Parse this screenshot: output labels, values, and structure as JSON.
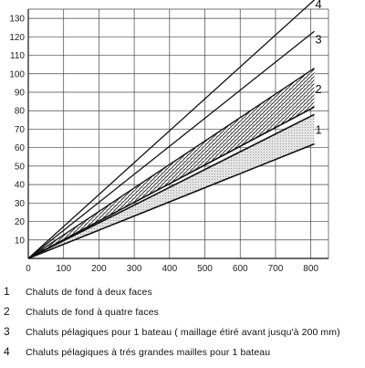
{
  "chart_data": {
    "type": "line",
    "xlabel": "",
    "ylabel": "",
    "xlim": [
      0,
      850
    ],
    "ylim": [
      0,
      135
    ],
    "x_ticks": [
      0,
      100,
      200,
      300,
      400,
      500,
      600,
      700,
      800
    ],
    "y_ticks": [
      10,
      20,
      30,
      40,
      50,
      60,
      70,
      80,
      90,
      100,
      110,
      120,
      130
    ],
    "grid": true,
    "series": [
      {
        "name": "4",
        "x": [
          0,
          810
        ],
        "y": [
          0,
          140
        ]
      },
      {
        "name": "3",
        "x": [
          0,
          810
        ],
        "y": [
          0,
          123
        ]
      },
      {
        "name": "2",
        "x": [
          0,
          810
        ],
        "y": [
          0,
          103
        ]
      },
      {
        "name": "",
        "x": [
          0,
          810
        ],
        "y": [
          0,
          82
        ]
      },
      {
        "name": "",
        "x": [
          0,
          810
        ],
        "y": [
          0,
          78
        ]
      },
      {
        "name": "",
        "x": [
          0,
          810
        ],
        "y": [
          0,
          62
        ]
      }
    ],
    "bands": [
      {
        "series_label": "2",
        "upper_y": 103,
        "lower_y": 82,
        "fill": "hatched"
      },
      {
        "series_label": "1",
        "upper_y": 78,
        "lower_y": 62,
        "fill": "dotted"
      }
    ],
    "curve_labels": [
      {
        "text": "4",
        "x": 820,
        "y": 138
      },
      {
        "text": "3",
        "x": 820,
        "y": 119
      },
      {
        "text": "2",
        "x": 820,
        "y": 92
      },
      {
        "text": "1",
        "x": 820,
        "y": 70
      }
    ],
    "legend": [
      {
        "num": "1",
        "text": "Chaluts de fond à deux faces"
      },
      {
        "num": "2",
        "text": "Chaluts de fond à quatre faces"
      },
      {
        "num": "3",
        "text": "Chaluts pélagiques pour 1 bateau ( maillage étiré avant jusqu'à 200 mm)"
      },
      {
        "num": "4",
        "text": "Chaluts pélagiques à trés grandes mailles pour 1 bateau"
      }
    ]
  }
}
